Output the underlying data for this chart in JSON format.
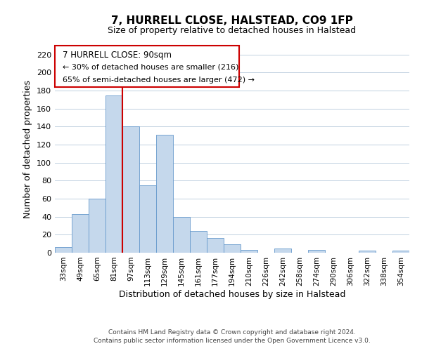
{
  "title": "7, HURRELL CLOSE, HALSTEAD, CO9 1FP",
  "subtitle": "Size of property relative to detached houses in Halstead",
  "xlabel": "Distribution of detached houses by size in Halstead",
  "ylabel": "Number of detached properties",
  "bar_color": "#c5d8ec",
  "bar_edge_color": "#6699cc",
  "categories": [
    "33sqm",
    "49sqm",
    "65sqm",
    "81sqm",
    "97sqm",
    "113sqm",
    "129sqm",
    "145sqm",
    "161sqm",
    "177sqm",
    "194sqm",
    "210sqm",
    "226sqm",
    "242sqm",
    "258sqm",
    "274sqm",
    "290sqm",
    "306sqm",
    "322sqm",
    "338sqm",
    "354sqm"
  ],
  "values": [
    6,
    43,
    60,
    175,
    140,
    75,
    131,
    40,
    24,
    16,
    9,
    3,
    0,
    5,
    0,
    3,
    0,
    0,
    2,
    0,
    2
  ],
  "ylim": [
    0,
    230
  ],
  "yticks": [
    0,
    20,
    40,
    60,
    80,
    100,
    120,
    140,
    160,
    180,
    200,
    220
  ],
  "vline_color": "#cc0000",
  "annotation_box_title": "7 HURRELL CLOSE: 90sqm",
  "annotation_line1": "← 30% of detached houses are smaller (216)",
  "annotation_line2": "65% of semi-detached houses are larger (472) →",
  "footer1": "Contains HM Land Registry data © Crown copyright and database right 2024.",
  "footer2": "Contains public sector information licensed under the Open Government Licence v3.0.",
  "background_color": "#ffffff",
  "grid_color": "#c0d0e0"
}
